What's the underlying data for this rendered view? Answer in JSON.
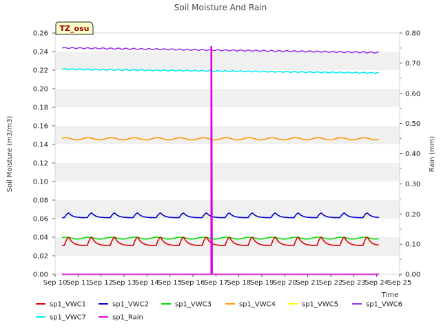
{
  "chart_data": {
    "type": "line",
    "title": "Soil Moisture And Rain",
    "site_badge": "TZ_osu",
    "xlabel": "Time",
    "ylabel_left": "Soil Moisture (m3/m3)",
    "ylabel_right": "Rain (mm)",
    "x_ticks": [
      "Sep 10",
      "Sep 11",
      "Sep 12",
      "Sep 13",
      "Sep 14",
      "Sep 15",
      "Sep 16",
      "Sep 17",
      "Sep 18",
      "Sep 19",
      "Sep 20",
      "Sep 21",
      "Sep 22",
      "Sep 23",
      "Sep 24",
      "Sep 25"
    ],
    "y_left_ticks": [
      "0.00",
      "0.02",
      "0.04",
      "0.06",
      "0.08",
      "0.10",
      "0.12",
      "0.14",
      "0.16",
      "0.18",
      "0.20",
      "0.22",
      "0.24",
      "0.26"
    ],
    "y_right_ticks": [
      "0.00",
      "0.10",
      "0.20",
      "0.30",
      "0.40",
      "0.50",
      "0.60",
      "0.70",
      "0.80"
    ],
    "xlim_days": [
      10,
      25
    ],
    "ylim_left": [
      0,
      0.26
    ],
    "ylim_right": [
      0,
      0.8
    ],
    "grid": "horizontal alternating bands",
    "legend_position": "bottom",
    "series": [
      {
        "name": "sp1_VWC1",
        "color": "#dd0000",
        "axis": "left",
        "x_start": 10.3,
        "x_end": 24.1,
        "base": 0.031,
        "amplitude": 0.009,
        "shape": "daily-peak"
      },
      {
        "name": "sp1_VWC2",
        "color": "#0000cc",
        "axis": "left",
        "x_start": 10.3,
        "x_end": 24.1,
        "base": 0.061,
        "amplitude": 0.005,
        "shape": "daily-peak"
      },
      {
        "name": "sp1_VWC3",
        "color": "#00dd00",
        "axis": "left",
        "x_start": 10.3,
        "x_end": 24.1,
        "base": 0.039,
        "amplitude": 0.001,
        "shape": "daily-wave"
      },
      {
        "name": "sp1_VWC4",
        "color": "#ff9900",
        "axis": "left",
        "x_start": 10.3,
        "x_end": 24.1,
        "base": 0.146,
        "amplitude": 0.0012,
        "shape": "daily-wave"
      },
      {
        "name": "sp1_VWC5",
        "color": "#ffff00",
        "axis": "left",
        "x_start": 10.3,
        "x_end": 24.1,
        "base": null,
        "amplitude": 0,
        "shape": "none"
      },
      {
        "name": "sp1_VWC6",
        "color": "#9933ee",
        "axis": "left",
        "x_start": 10.3,
        "x_end": 24.1,
        "start_value": 0.244,
        "end_value": 0.239,
        "amplitude": 0.0006,
        "shape": "trend"
      },
      {
        "name": "sp1_VWC7",
        "color": "#00eeee",
        "axis": "left",
        "x_start": 10.3,
        "x_end": 24.1,
        "start_value": 0.221,
        "end_value": 0.217,
        "amplitude": 0.0005,
        "shape": "trend"
      },
      {
        "name": "sp1_Rain",
        "color": "#dd00dd",
        "axis": "right",
        "x_start": 10.3,
        "x_end": 24.1,
        "baseline": 0.0,
        "spike_x": 16.8,
        "spike_value": 0.755,
        "shape": "spike"
      }
    ]
  }
}
